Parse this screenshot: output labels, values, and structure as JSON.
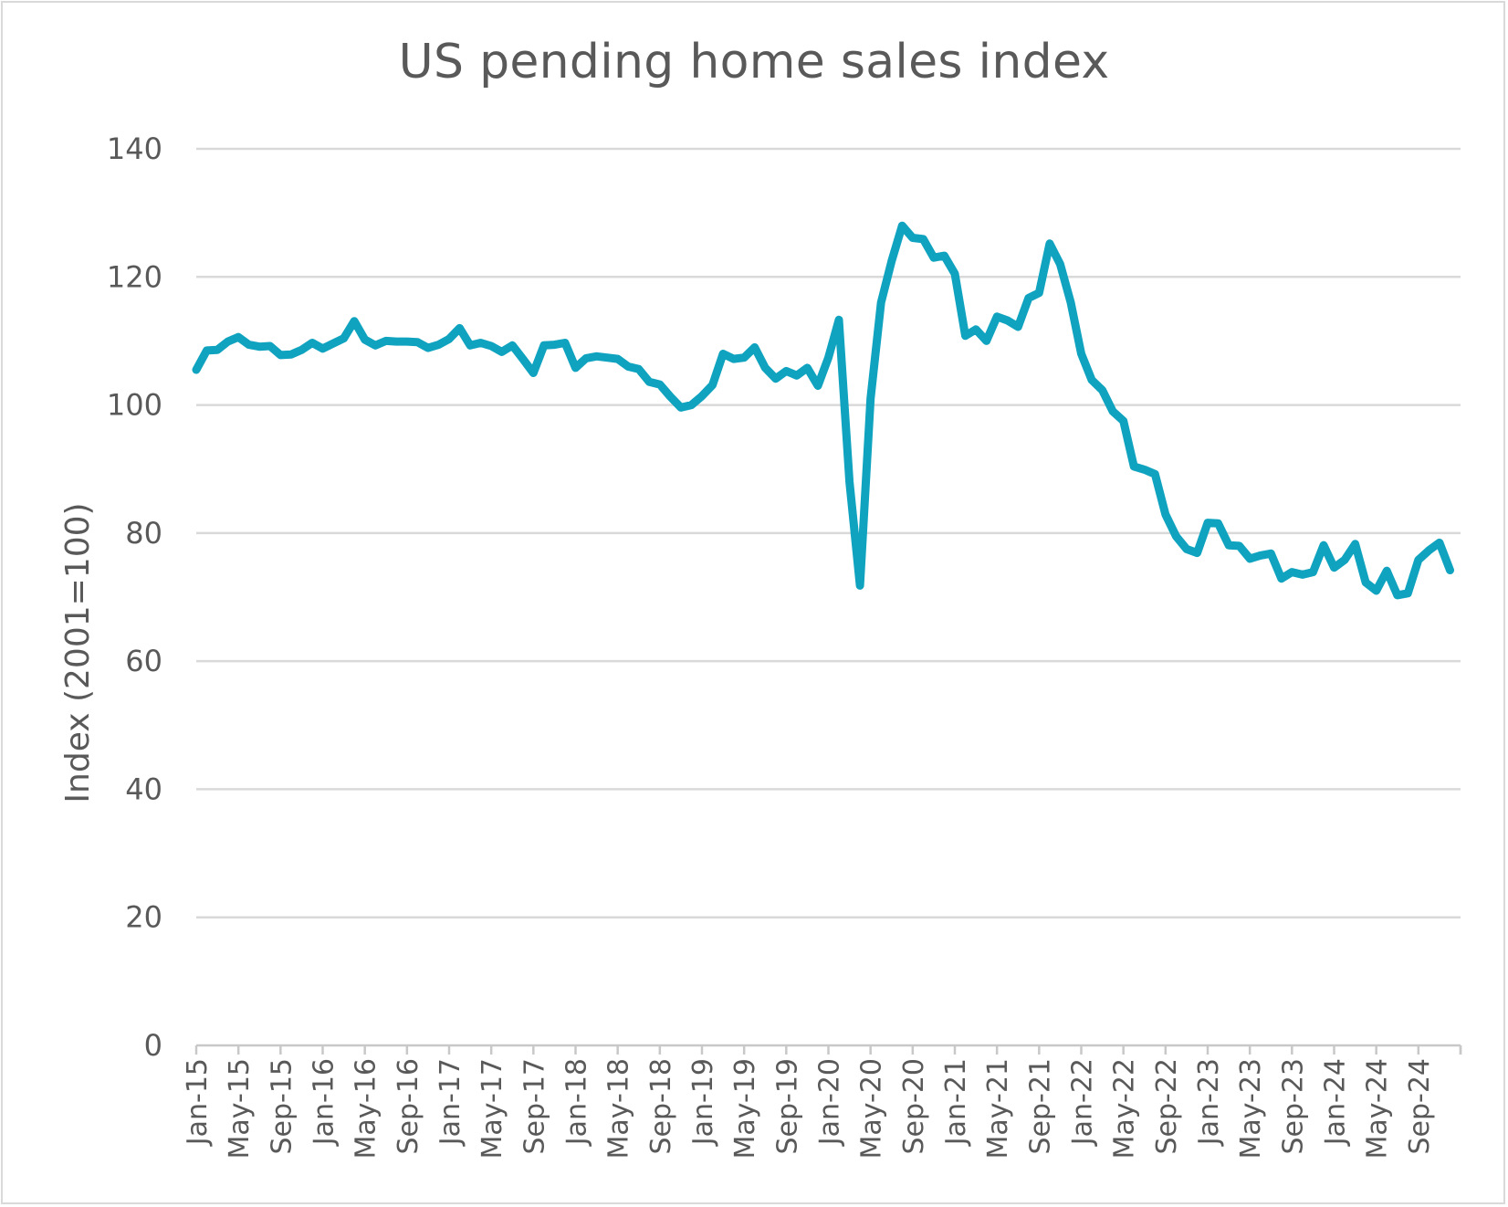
{
  "chart_data": {
    "type": "line",
    "title": "US pending home sales index",
    "xlabel": "",
    "ylabel": "Index (2001=100)",
    "ylim": [
      0,
      140
    ],
    "yticks": [
      0,
      20,
      40,
      60,
      80,
      100,
      120,
      140
    ],
    "grid": true,
    "legend": "none",
    "series_color": "#0fa3bf",
    "x_tick_labels": [
      "Jan-15",
      "May-15",
      "Sep-15",
      "Jan-16",
      "May-16",
      "Sep-16",
      "Jan-17",
      "May-17",
      "Sep-17",
      "Jan-18",
      "May-18",
      "Sep-18",
      "Jan-19",
      "May-19",
      "Sep-19",
      "Jan-20",
      "May-20",
      "Sep-20",
      "Jan-21",
      "May-21",
      "Sep-21",
      "Jan-22",
      "May-22",
      "Sep-22",
      "Jan-23",
      "May-23",
      "Sep-23",
      "Jan-24",
      "May-24",
      "Sep-24"
    ],
    "x": [
      "Jan-15",
      "Feb-15",
      "Mar-15",
      "Apr-15",
      "May-15",
      "Jun-15",
      "Jul-15",
      "Aug-15",
      "Sep-15",
      "Oct-15",
      "Nov-15",
      "Dec-15",
      "Jan-16",
      "Feb-16",
      "Mar-16",
      "Apr-16",
      "May-16",
      "Jun-16",
      "Jul-16",
      "Aug-16",
      "Sep-16",
      "Oct-16",
      "Nov-16",
      "Dec-16",
      "Jan-17",
      "Feb-17",
      "Mar-17",
      "Apr-17",
      "May-17",
      "Jun-17",
      "Jul-17",
      "Aug-17",
      "Sep-17",
      "Oct-17",
      "Nov-17",
      "Dec-17",
      "Jan-18",
      "Feb-18",
      "Mar-18",
      "Apr-18",
      "May-18",
      "Jun-18",
      "Jul-18",
      "Aug-18",
      "Sep-18",
      "Oct-18",
      "Nov-18",
      "Dec-18",
      "Jan-19",
      "Feb-19",
      "Mar-19",
      "Apr-19",
      "May-19",
      "Jun-19",
      "Jul-19",
      "Aug-19",
      "Sep-19",
      "Oct-19",
      "Nov-19",
      "Dec-19",
      "Jan-20",
      "Feb-20",
      "Mar-20",
      "Apr-20",
      "May-20",
      "Jun-20",
      "Jul-20",
      "Aug-20",
      "Sep-20",
      "Oct-20",
      "Nov-20",
      "Dec-20",
      "Jan-21",
      "Feb-21",
      "Mar-21",
      "Apr-21",
      "May-21",
      "Jun-21",
      "Jul-21",
      "Aug-21",
      "Sep-21",
      "Oct-21",
      "Nov-21",
      "Dec-21",
      "Jan-22",
      "Feb-22",
      "Mar-22",
      "Apr-22",
      "May-22",
      "Jun-22",
      "Jul-22",
      "Aug-22",
      "Sep-22",
      "Oct-22",
      "Nov-22",
      "Dec-22",
      "Jan-23",
      "Feb-23",
      "Mar-23",
      "Apr-23",
      "May-23",
      "Jun-23",
      "Jul-23",
      "Aug-23",
      "Sep-23",
      "Oct-23",
      "Nov-23",
      "Dec-23",
      "Jan-24",
      "Feb-24",
      "Mar-24",
      "Apr-24",
      "May-24",
      "Jun-24",
      "Jul-24",
      "Aug-24",
      "Sep-24",
      "Oct-24",
      "Nov-24",
      "Dec-24"
    ],
    "values": [
      105.5,
      108.5,
      108.6,
      109.9,
      110.6,
      109.4,
      109.1,
      109.2,
      107.8,
      107.9,
      108.6,
      109.7,
      108.8,
      109.6,
      110.4,
      113.1,
      110.2,
      109.3,
      110.0,
      109.9,
      109.9,
      109.8,
      108.9,
      109.4,
      110.3,
      112.0,
      109.3,
      109.7,
      109.2,
      108.3,
      109.3,
      107.2,
      105.0,
      109.3,
      109.4,
      109.7,
      105.8,
      107.3,
      107.6,
      107.4,
      107.2,
      106.0,
      105.6,
      103.6,
      103.2,
      101.3,
      99.6,
      100.0,
      101.4,
      103.1,
      108.0,
      107.2,
      107.4,
      109.0,
      105.8,
      104.1,
      105.3,
      104.6,
      105.8,
      103.0,
      107.4,
      113.3,
      88.0,
      71.8,
      101.0,
      116.0,
      122.5,
      128.0,
      126.1,
      125.9,
      123.0,
      123.3,
      120.5,
      110.8,
      111.8,
      110.0,
      113.8,
      113.2,
      112.2,
      116.7,
      117.5,
      125.2,
      122.0,
      116.0,
      108.0,
      103.9,
      102.3,
      99.0,
      97.5,
      90.4,
      89.9,
      89.2,
      82.9,
      79.5,
      77.5,
      76.9,
      81.6,
      81.5,
      78.1,
      78.0,
      76.0,
      76.5,
      76.8,
      72.9,
      73.9,
      73.5,
      73.9,
      78.1,
      74.6,
      75.8,
      78.3,
      72.3,
      71.0,
      74.1,
      70.3,
      70.6,
      75.8,
      77.3,
      78.5,
      74.2
    ]
  }
}
